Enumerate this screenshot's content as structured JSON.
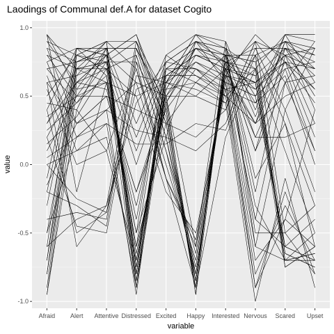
{
  "chart_data": {
    "type": "line",
    "title": "Laodings of Communal def.A for dataset Cogito",
    "xlabel": "variable",
    "ylabel": "value",
    "categories": [
      "Afraid",
      "Alert",
      "Attentive",
      "Distressed",
      "Excited",
      "Happy",
      "Interested",
      "Nervous",
      "Scared",
      "Upset"
    ],
    "ylim": [
      -1.05,
      1.05
    ],
    "y_ticks": [
      -1.0,
      -0.5,
      0.0,
      0.5,
      1.0
    ],
    "y_tick_labels": [
      "-1.0",
      "-0.5",
      "0.0",
      "0.5",
      "1.0"
    ],
    "grid": true,
    "legend": "none",
    "colors": {
      "panel": "#ebebeb",
      "grid_major": "#ffffff",
      "grid_minor": "#f5f5f5",
      "line": "#000000"
    },
    "series": [
      {
        "values": [
          0.95,
          0.55,
          0.85,
          -0.9,
          0.6,
          0.95,
          0.7,
          0.3,
          0.9,
          0.8
        ]
      },
      {
        "values": [
          0.9,
          0.6,
          0.8,
          -0.85,
          0.55,
          0.9,
          0.75,
          0.1,
          0.85,
          0.75
        ]
      },
      {
        "values": [
          0.8,
          0.7,
          0.9,
          -0.8,
          0.7,
          0.85,
          0.8,
          -0.2,
          0.8,
          0.7
        ]
      },
      {
        "values": [
          0.7,
          0.75,
          0.85,
          -0.75,
          0.65,
          0.8,
          0.7,
          -0.4,
          0.6,
          0.9
        ]
      },
      {
        "values": [
          0.6,
          0.65,
          0.75,
          -0.7,
          0.5,
          0.75,
          0.65,
          -0.6,
          0.4,
          0.85
        ]
      },
      {
        "values": [
          0.5,
          0.8,
          0.7,
          -0.6,
          0.75,
          0.7,
          0.6,
          0.5,
          -0.6,
          -0.7
        ]
      },
      {
        "values": [
          0.4,
          0.85,
          0.65,
          -0.5,
          0.8,
          0.65,
          0.55,
          0.6,
          -0.65,
          -0.75
        ]
      },
      {
        "values": [
          0.3,
          0.7,
          0.6,
          -0.4,
          0.7,
          0.6,
          0.5,
          0.7,
          -0.7,
          -0.65
        ]
      },
      {
        "values": [
          0.2,
          0.6,
          0.55,
          -0.3,
          0.6,
          0.55,
          0.45,
          0.8,
          -0.75,
          -0.6
        ]
      },
      {
        "values": [
          0.1,
          0.5,
          0.5,
          -0.2,
          0.5,
          0.5,
          0.4,
          0.9,
          -0.5,
          -0.8
        ]
      },
      {
        "values": [
          -0.1,
          0.85,
          0.8,
          0.95,
          0.3,
          -0.9,
          0.85,
          0.7,
          0.95,
          0.6
        ]
      },
      {
        "values": [
          -0.2,
          0.8,
          0.75,
          0.9,
          0.2,
          -0.85,
          0.8,
          0.75,
          0.9,
          0.4
        ]
      },
      {
        "values": [
          -0.3,
          0.75,
          0.85,
          0.85,
          0.4,
          -0.95,
          0.75,
          0.65,
          0.85,
          0.5
        ]
      },
      {
        "values": [
          -0.5,
          0.7,
          0.7,
          0.8,
          0.1,
          -0.8,
          0.7,
          0.6,
          0.8,
          0.3
        ]
      },
      {
        "values": [
          -0.7,
          0.65,
          0.9,
          0.7,
          0.0,
          -0.7,
          0.65,
          0.55,
          0.75,
          0.2
        ]
      },
      {
        "values": [
          -0.8,
          0.6,
          0.8,
          0.6,
          -0.1,
          -0.6,
          0.6,
          0.5,
          0.7,
          0.1
        ]
      },
      {
        "values": [
          -0.95,
          0.55,
          0.6,
          0.5,
          -0.2,
          -0.5,
          0.55,
          0.45,
          0.65,
          0.0
        ]
      },
      {
        "values": [
          -0.6,
          -0.4,
          -0.3,
          0.9,
          0.3,
          -0.85,
          0.8,
          0.8,
          0.9,
          0.7
        ]
      },
      {
        "values": [
          -0.4,
          -0.35,
          -0.4,
          0.85,
          0.2,
          -0.75,
          0.75,
          0.85,
          0.85,
          0.65
        ]
      },
      {
        "values": [
          -0.2,
          -0.3,
          -0.45,
          0.8,
          0.1,
          -0.65,
          0.7,
          0.9,
          0.8,
          0.55
        ]
      },
      {
        "values": [
          0.0,
          -0.25,
          -0.35,
          0.75,
          -0.1,
          -0.55,
          0.65,
          0.95,
          0.75,
          0.45
        ]
      },
      {
        "values": [
          0.2,
          -0.45,
          -0.5,
          0.65,
          0.6,
          0.85,
          0.75,
          -0.3,
          -0.7,
          -0.5
        ]
      },
      {
        "values": [
          0.4,
          -0.5,
          -0.35,
          0.55,
          0.65,
          0.8,
          0.7,
          -0.4,
          -0.6,
          -0.4
        ]
      },
      {
        "values": [
          0.6,
          -0.6,
          -0.3,
          0.45,
          0.75,
          0.9,
          0.85,
          -0.5,
          -0.5,
          -0.3
        ]
      },
      {
        "values": [
          0.85,
          0.3,
          0.4,
          -0.95,
          0.6,
          0.75,
          0.6,
          -0.7,
          -0.4,
          -0.6
        ]
      },
      {
        "values": [
          0.75,
          0.2,
          0.3,
          -0.9,
          0.7,
          0.7,
          0.55,
          -0.8,
          -0.3,
          -0.7
        ]
      },
      {
        "values": [
          0.65,
          0.1,
          0.2,
          -0.8,
          0.65,
          0.65,
          0.5,
          -0.9,
          -0.2,
          -0.8
        ]
      },
      {
        "values": [
          0.55,
          0.0,
          0.1,
          -0.7,
          0.55,
          0.6,
          0.45,
          -1.0,
          -0.1,
          -0.9
        ]
      },
      {
        "values": [
          0.45,
          0.4,
          0.85,
          0.3,
          0.8,
          0.95,
          0.9,
          0.4,
          0.95,
          0.95
        ]
      },
      {
        "values": [
          0.35,
          0.5,
          0.8,
          0.2,
          0.75,
          0.9,
          0.85,
          0.35,
          0.9,
          0.85
        ]
      },
      {
        "values": [
          0.25,
          0.45,
          0.75,
          0.1,
          0.7,
          0.85,
          0.8,
          0.2,
          0.7,
          0.75
        ]
      },
      {
        "values": [
          0.15,
          0.35,
          0.7,
          0.0,
          0.65,
          0.8,
          0.75,
          0.1,
          0.6,
          0.65
        ]
      },
      {
        "values": [
          -0.8,
          0.75,
          0.8,
          0.95,
          0.4,
          -0.9,
          0.8,
          0.75,
          -0.6,
          -0.7
        ]
      },
      {
        "values": [
          -0.7,
          0.8,
          0.9,
          0.9,
          0.5,
          -0.95,
          0.75,
          0.7,
          -0.65,
          -0.75
        ]
      },
      {
        "values": [
          -0.6,
          0.85,
          0.85,
          0.85,
          0.45,
          -0.85,
          0.7,
          0.65,
          -0.7,
          -0.65
        ]
      },
      {
        "values": [
          -0.9,
          0.7,
          0.75,
          0.75,
          0.35,
          -0.8,
          0.65,
          0.6,
          -0.75,
          -0.6
        ]
      },
      {
        "values": [
          0.9,
          0.8,
          0.9,
          -0.8,
          0.6,
          0.95,
          0.85,
          0.5,
          0.95,
          0.9
        ]
      },
      {
        "values": [
          0.85,
          0.75,
          0.85,
          -0.85,
          0.55,
          0.9,
          0.8,
          0.45,
          0.85,
          0.8
        ]
      },
      {
        "values": [
          0.75,
          0.85,
          0.8,
          -0.75,
          0.5,
          0.85,
          0.75,
          0.55,
          0.8,
          0.85
        ]
      },
      {
        "values": [
          0.95,
          0.7,
          0.75,
          -0.65,
          0.45,
          0.8,
          0.7,
          0.6,
          0.75,
          0.7
        ]
      },
      {
        "values": [
          -0.15,
          0.3,
          0.5,
          0.4,
          0.3,
          0.2,
          0.4,
          0.9,
          0.6,
          0.1
        ]
      },
      {
        "values": [
          0.05,
          0.2,
          0.4,
          0.25,
          0.2,
          0.1,
          0.3,
          0.85,
          0.4,
          -0.2
        ]
      },
      {
        "values": [
          0.0,
          0.1,
          0.3,
          0.15,
          0.15,
          0.3,
          0.25,
          0.8,
          0.3,
          -0.3
        ]
      },
      {
        "values": [
          0.95,
          -0.2,
          0.6,
          -0.5,
          0.2,
          0.9,
          0.6,
          -0.9,
          -0.4,
          0.4
        ]
      },
      {
        "values": [
          -0.95,
          0.4,
          0.1,
          0.7,
          -0.1,
          -0.9,
          0.2,
          0.7,
          0.1,
          -0.5
        ]
      },
      {
        "values": [
          0.6,
          0.3,
          0.5,
          -0.2,
          0.4,
          0.7,
          0.5,
          0.3,
          0.5,
          0.6
        ]
      },
      {
        "values": [
          0.3,
          0.6,
          0.7,
          0.5,
          0.6,
          0.5,
          0.7,
          0.2,
          0.2,
          0.3
        ]
      },
      {
        "values": [
          0.8,
          0.5,
          0.6,
          -0.6,
          0.3,
          0.6,
          0.8,
          -0.1,
          0.3,
          -0.6
        ]
      },
      {
        "values": [
          -0.5,
          0.2,
          0.4,
          0.6,
          0.5,
          -0.6,
          0.9,
          -0.6,
          -0.7,
          -0.7
        ]
      },
      {
        "values": [
          0.7,
          0.45,
          0.65,
          -0.9,
          0.45,
          0.85,
          0.65,
          0.3,
          0.75,
          0.55
        ]
      }
    ]
  }
}
